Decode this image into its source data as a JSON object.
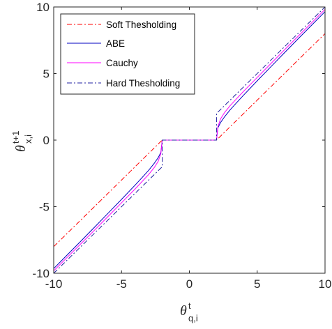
{
  "chart_data": {
    "type": "line",
    "xlabel": {
      "base": "θ",
      "sup": "t",
      "sub": "q,i"
    },
    "ylabel": {
      "base": "θ",
      "sup": "t+1",
      "sub": "x,i"
    },
    "xlim": [
      -10,
      10
    ],
    "ylim": [
      -10,
      10
    ],
    "xticks": [
      -10,
      -5,
      0,
      5,
      10
    ],
    "yticks": [
      -10,
      -5,
      0,
      5,
      10
    ],
    "xtick_labels": [
      "-10",
      "-5",
      "0",
      "5",
      "10"
    ],
    "ytick_labels": [
      "-10",
      "-5",
      "0",
      "5",
      "10"
    ],
    "grid": false,
    "legend_position": "top-left",
    "series": [
      {
        "name": "Soft Thesholding",
        "color": "#ff0000",
        "style": "dashdot",
        "x": [
          -10,
          -2,
          2,
          10
        ],
        "y": [
          -8,
          0,
          0,
          8
        ]
      },
      {
        "name": "ABE",
        "color": "#0000c0",
        "style": "solid",
        "x": [
          -10,
          -9,
          -8,
          -7,
          -6,
          -5,
          -4,
          -3.5,
          -3,
          -2.6,
          -2.3,
          -2.1,
          -2,
          2,
          2.1,
          2.3,
          2.6,
          3,
          3.5,
          4,
          5,
          6,
          7,
          8,
          9,
          10
        ],
        "y": [
          -9.65,
          -8.62,
          -7.59,
          -6.55,
          -5.5,
          -4.45,
          -3.38,
          -2.83,
          -2.27,
          -1.76,
          -1.32,
          -0.92,
          0,
          0,
          0.92,
          1.32,
          1.76,
          2.27,
          2.83,
          3.38,
          4.45,
          5.5,
          6.55,
          7.59,
          8.62,
          9.65
        ]
      },
      {
        "name": "Cauchy",
        "color": "#ff00ff",
        "style": "solid",
        "x": [
          -10,
          -9,
          -8,
          -7,
          -6,
          -5,
          -4,
          -3.5,
          -3,
          -2.6,
          -2.3,
          -2.1,
          -2,
          2,
          2.1,
          2.3,
          2.6,
          3,
          3.5,
          4,
          5,
          6,
          7,
          8,
          9,
          10
        ],
        "y": [
          -9.82,
          -8.8,
          -7.79,
          -6.77,
          -5.74,
          -4.71,
          -3.67,
          -3.13,
          -2.58,
          -2.08,
          -1.6,
          -1.0,
          0,
          0,
          1.0,
          1.6,
          2.08,
          2.58,
          3.13,
          3.67,
          4.71,
          5.74,
          6.77,
          7.79,
          8.8,
          9.82
        ]
      },
      {
        "name": "Hard Thesholding",
        "color": "#1f1fa0",
        "style": "dashdot",
        "x": [
          -10,
          -2,
          -2,
          2,
          2,
          10
        ],
        "y": [
          -10,
          -2,
          0,
          0,
          2,
          10
        ]
      }
    ]
  }
}
